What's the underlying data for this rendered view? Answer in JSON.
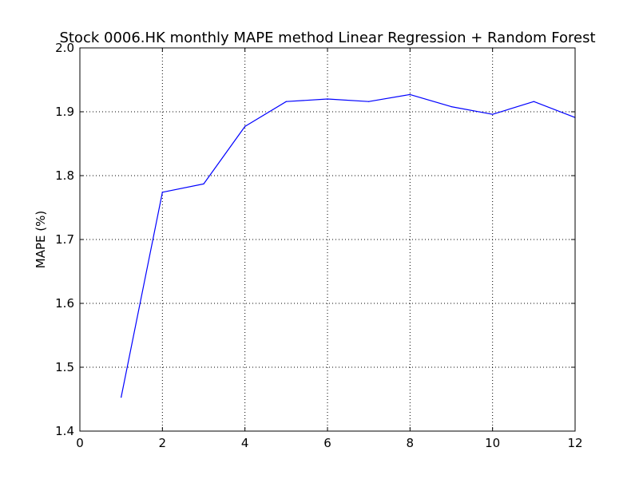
{
  "chart_data": {
    "type": "line",
    "title": "Stock 0006.HK monthly MAPE method Linear Regression + Random Forest",
    "xlabel": "",
    "ylabel": "MAPE (%)",
    "xlim": [
      0,
      12
    ],
    "ylim": [
      1.4,
      2.0
    ],
    "xticks": [
      "0",
      "2",
      "4",
      "6",
      "8",
      "10",
      "12"
    ],
    "yticks": [
      "1.4",
      "1.5",
      "1.6",
      "1.7",
      "1.8",
      "1.9",
      "2.0"
    ],
    "grid": true,
    "line_color": "#0000ff",
    "series": [
      {
        "x": [
          1,
          2,
          3,
          4,
          5,
          6,
          7,
          8,
          9,
          10,
          11,
          12
        ],
        "values": [
          1.453,
          1.774,
          1.787,
          1.877,
          1.916,
          1.92,
          1.916,
          1.927,
          1.908,
          1.896,
          1.916,
          1.891
        ]
      }
    ]
  }
}
